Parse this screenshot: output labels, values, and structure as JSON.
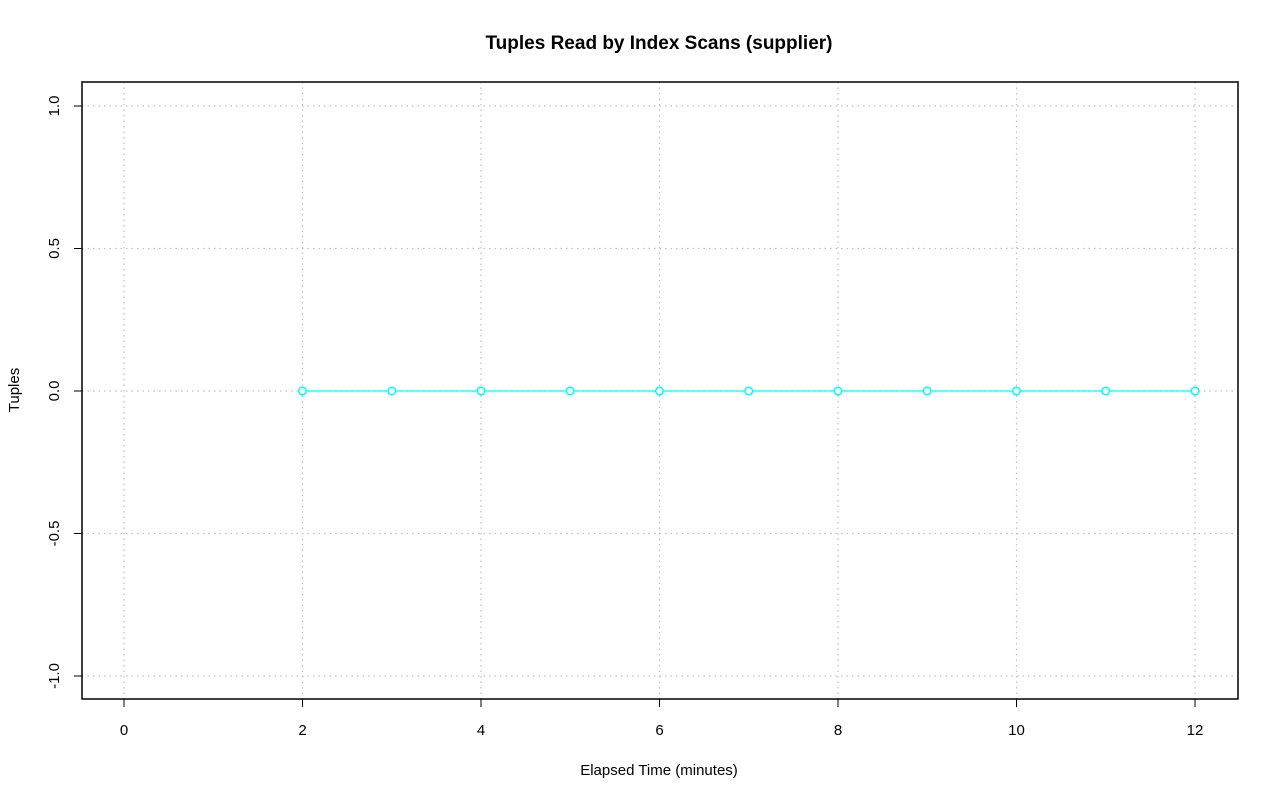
{
  "chart_data": {
    "type": "line",
    "title": "Tuples Read by Index Scans (supplier)",
    "xlabel": "Elapsed Time (minutes)",
    "ylabel": "Tuples",
    "xlim": [
      0,
      12
    ],
    "ylim": [
      -1.0,
      1.0
    ],
    "x_ticks": [
      0,
      2,
      4,
      6,
      8,
      10,
      12
    ],
    "x_tick_labels": [
      "0",
      "2",
      "4",
      "6",
      "8",
      "10",
      "12"
    ],
    "y_ticks": [
      -1.0,
      -0.5,
      0.0,
      0.5,
      1.0
    ],
    "y_tick_labels": [
      "-1.0",
      "-0.5",
      "0.0",
      "0.5",
      "1.0"
    ],
    "grid": true,
    "series": [
      {
        "color": "#00ffff",
        "marker": "circle",
        "x": [
          2,
          3,
          4,
          5,
          6,
          7,
          8,
          9,
          10,
          11,
          12
        ],
        "y": [
          0,
          0,
          0,
          0,
          0,
          0,
          0,
          0,
          0,
          0,
          0
        ]
      }
    ]
  },
  "colors": {
    "grid": "#c0c0c0",
    "frame": "#000000",
    "series": "#00ffff"
  }
}
